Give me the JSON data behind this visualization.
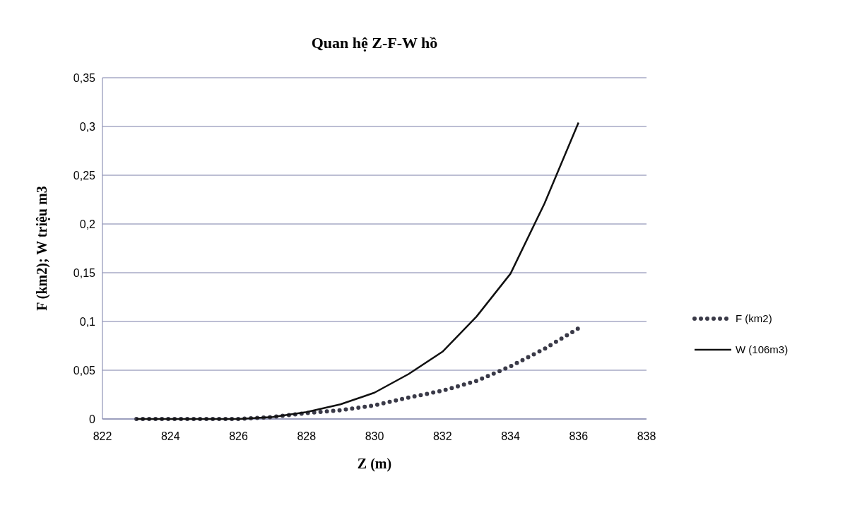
{
  "chart_data": {
    "type": "line",
    "title": "Quan hệ Z-F-W hồ",
    "xlabel": "Z (m)",
    "ylabel": "F (km2); W triệu m3",
    "x": [
      823,
      824,
      825,
      826,
      827,
      828,
      829,
      830,
      831,
      832,
      833,
      834,
      835,
      836
    ],
    "series": [
      {
        "name": "F (km2)",
        "color": "#3a3a48",
        "line_style": "dotted",
        "values": [
          0,
          0,
          0,
          0,
          0.002,
          0.006,
          0.009,
          0.014,
          0.022,
          0.029,
          0.039,
          0.054,
          0.072,
          0.093
        ]
      },
      {
        "name": "W (106m3)",
        "color": "#111111",
        "line_style": "solid",
        "values": [
          0,
          0,
          0,
          0,
          0.002,
          0.007,
          0.015,
          0.027,
          0.046,
          0.069,
          0.105,
          0.149,
          0.221,
          0.304
        ]
      }
    ],
    "xlim": [
      822,
      838
    ],
    "xticks": [
      822,
      824,
      826,
      828,
      830,
      832,
      834,
      836,
      838
    ],
    "ylim": [
      0,
      0.35
    ],
    "yticks": [
      {
        "value": 0,
        "label": "0"
      },
      {
        "value": 0.05,
        "label": "0,05"
      },
      {
        "value": 0.1,
        "label": "0,1"
      },
      {
        "value": 0.15,
        "label": "0,15"
      },
      {
        "value": 0.2,
        "label": "0,2"
      },
      {
        "value": 0.25,
        "label": "0,25"
      },
      {
        "value": 0.3,
        "label": "0,3"
      },
      {
        "value": 0.35,
        "label": "0,35"
      }
    ],
    "grid": "y",
    "legend": "right",
    "marker": "none"
  }
}
